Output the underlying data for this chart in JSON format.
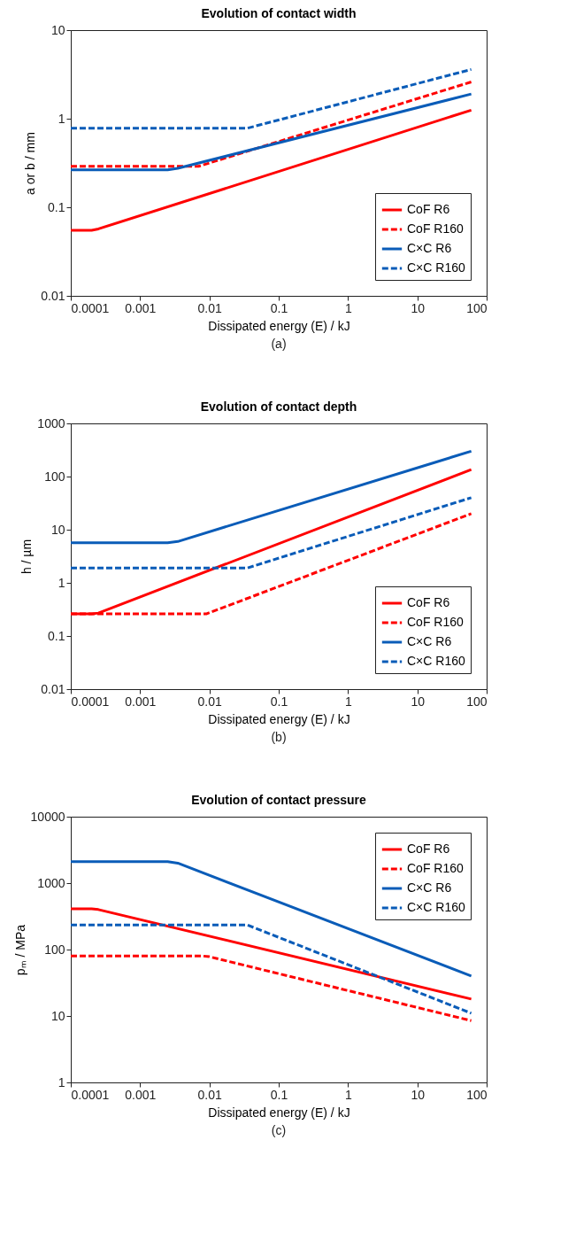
{
  "chart_data": [
    {
      "type": "line",
      "title": "Evolution of contact width",
      "xlabel": "Dissipated energy (E) / kJ",
      "ylabel": "a or b / mm",
      "annotations": [
        "(a)"
      ],
      "log": "xy",
      "grid": false,
      "legend": "bottom right",
      "xlim": [
        0.0001,
        100
      ],
      "xticks": [
        0.0001,
        0.001,
        0.01,
        0.1,
        1,
        10,
        100
      ],
      "ylim": [
        0.01,
        10
      ],
      "yticks": [
        0.01,
        0.1,
        1,
        10
      ],
      "series": [
        {
          "name": "CoF R6",
          "color": "#ff0000",
          "line_style": "solid",
          "x": [
            0.0001,
            0.0002,
            0.00025,
            60
          ],
          "values": [
            0.055,
            0.055,
            0.057,
            1.25
          ]
        },
        {
          "name": "CoF R160",
          "color": "#ff0000",
          "line_style": "dashed",
          "x": [
            0.0001,
            0.007,
            60
          ],
          "values": [
            0.29,
            0.29,
            2.6
          ]
        },
        {
          "name": "C×C R6",
          "color": "#0a5cb8",
          "line_style": "solid",
          "x": [
            0.0001,
            0.0025,
            0.0035,
            60
          ],
          "values": [
            0.265,
            0.265,
            0.275,
            1.9
          ]
        },
        {
          "name": "C×C R160",
          "color": "#0a5cb8",
          "line_style": "dashed",
          "x": [
            0.0001,
            0.035,
            60
          ],
          "values": [
            0.78,
            0.78,
            3.6
          ]
        }
      ]
    },
    {
      "type": "line",
      "title": "Evolution of contact depth",
      "xlabel": "Dissipated energy (E) / kJ",
      "ylabel": "h / µm",
      "annotations": [
        "(b)"
      ],
      "log": "xy",
      "grid": false,
      "legend": "bottom right",
      "xlim": [
        0.0001,
        100
      ],
      "xticks": [
        0.0001,
        0.001,
        0.01,
        0.1,
        1,
        10,
        100
      ],
      "ylim": [
        0.01,
        1000
      ],
      "yticks": [
        0.01,
        0.1,
        1,
        10,
        100,
        1000
      ],
      "series": [
        {
          "name": "CoF R6",
          "color": "#ff0000",
          "line_style": "solid",
          "x": [
            0.0001,
            0.0002,
            0.00025,
            60
          ],
          "values": [
            0.26,
            0.26,
            0.27,
            135
          ]
        },
        {
          "name": "CoF R160",
          "color": "#ff0000",
          "line_style": "dashed",
          "x": [
            0.0001,
            0.009,
            60
          ],
          "values": [
            0.26,
            0.26,
            20
          ]
        },
        {
          "name": "C×C R6",
          "color": "#0a5cb8",
          "line_style": "solid",
          "x": [
            0.0001,
            0.0025,
            0.0035,
            60
          ],
          "values": [
            5.7,
            5.7,
            6.0,
            300
          ]
        },
        {
          "name": "C×C R160",
          "color": "#0a5cb8",
          "line_style": "dashed",
          "x": [
            0.0001,
            0.035,
            60
          ],
          "values": [
            1.9,
            1.9,
            40
          ]
        }
      ]
    },
    {
      "type": "line",
      "title": "Evolution of contact pressure",
      "xlabel": "Dissipated energy (E) / kJ",
      "ylabel": "pₘ / MPa",
      "annotations": [
        "(c)"
      ],
      "log": "xy",
      "grid": false,
      "legend": "top right",
      "xlim": [
        0.0001,
        100
      ],
      "xticks": [
        0.0001,
        0.001,
        0.01,
        0.1,
        1,
        10,
        100
      ],
      "ylim": [
        1,
        10000
      ],
      "yticks": [
        1,
        10,
        100,
        1000,
        10000
      ],
      "series": [
        {
          "name": "CoF R6",
          "color": "#ff0000",
          "line_style": "solid",
          "x": [
            0.0001,
            0.0002,
            0.00025,
            60
          ],
          "values": [
            410,
            410,
            400,
            18
          ]
        },
        {
          "name": "CoF R160",
          "color": "#ff0000",
          "line_style": "dashed",
          "x": [
            0.0001,
            0.008,
            0.01,
            60
          ],
          "values": [
            80,
            80,
            78,
            8.5
          ]
        },
        {
          "name": "C×C R6",
          "color": "#0a5cb8",
          "line_style": "solid",
          "x": [
            0.0001,
            0.0025,
            0.0035,
            60
          ],
          "values": [
            2100,
            2100,
            2000,
            40
          ]
        },
        {
          "name": "C×C R160",
          "color": "#0a5cb8",
          "line_style": "dashed",
          "x": [
            0.0001,
            0.035,
            60
          ],
          "values": [
            235,
            235,
            11
          ]
        }
      ]
    }
  ]
}
